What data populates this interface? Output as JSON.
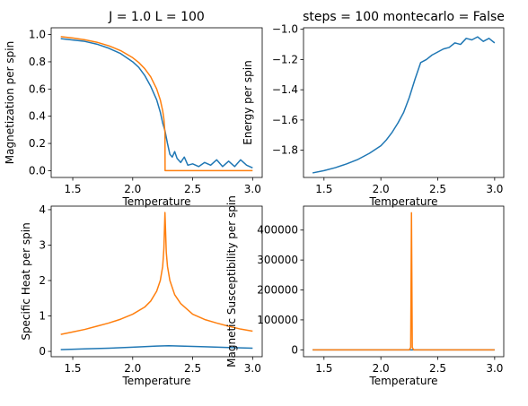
{
  "colors": {
    "blue": "#1f77b4",
    "orange": "#ff7f0e",
    "axis": "#000000",
    "background": "#ffffff"
  },
  "chart_data": [
    {
      "type": "line",
      "title": "J = 1.0 L = 100",
      "xlabel": "Temperature",
      "ylabel": "Magnetization per spin",
      "xlim": [
        1.32,
        3.08
      ],
      "ylim": [
        -0.05,
        1.05
      ],
      "xticks": [
        1.5,
        2.0,
        2.5,
        3.0
      ],
      "xtick_labels": [
        "1.5",
        "2.0",
        "2.5",
        "3.0"
      ],
      "yticks": [
        0.0,
        0.2,
        0.4,
        0.6,
        0.8,
        1.0
      ],
      "ytick_labels": [
        "0.0",
        "0.2",
        "0.4",
        "0.6",
        "0.8",
        "1.0"
      ],
      "grid": false,
      "series": [
        {
          "color": "#1f77b4",
          "x": [
            1.4,
            1.5,
            1.6,
            1.7,
            1.8,
            1.9,
            2.0,
            2.05,
            2.1,
            2.15,
            2.2,
            2.23,
            2.25,
            2.27,
            2.29,
            2.31,
            2.33,
            2.35,
            2.37,
            2.4,
            2.43,
            2.46,
            2.5,
            2.55,
            2.6,
            2.65,
            2.7,
            2.75,
            2.8,
            2.85,
            2.9,
            2.95,
            3.0
          ],
          "y": [
            0.97,
            0.96,
            0.95,
            0.93,
            0.9,
            0.86,
            0.8,
            0.76,
            0.7,
            0.62,
            0.52,
            0.43,
            0.35,
            0.29,
            0.2,
            0.12,
            0.1,
            0.14,
            0.09,
            0.06,
            0.1,
            0.04,
            0.05,
            0.03,
            0.06,
            0.04,
            0.08,
            0.03,
            0.07,
            0.03,
            0.08,
            0.04,
            0.02
          ]
        },
        {
          "color": "#ff7f0e",
          "x": [
            1.4,
            1.5,
            1.6,
            1.7,
            1.8,
            1.9,
            2.0,
            2.05,
            2.1,
            2.15,
            2.2,
            2.23,
            2.25,
            2.26,
            2.269,
            2.27,
            2.5,
            3.0
          ],
          "y": [
            0.985,
            0.975,
            0.962,
            0.944,
            0.918,
            0.882,
            0.83,
            0.795,
            0.75,
            0.69,
            0.6,
            0.52,
            0.44,
            0.38,
            0.28,
            0.0,
            0.0,
            0.0
          ]
        }
      ]
    },
    {
      "type": "line",
      "title": "steps = 100 montecarlo = False",
      "xlabel": "Temperature",
      "ylabel": "Energy per spin",
      "xlim": [
        1.32,
        3.08
      ],
      "ylim": [
        -1.98,
        -0.99
      ],
      "xticks": [
        1.5,
        2.0,
        2.5,
        3.0
      ],
      "xtick_labels": [
        "1.5",
        "2.0",
        "2.5",
        "3.0"
      ],
      "yticks": [
        -1.8,
        -1.6,
        -1.4,
        -1.2,
        -1.0
      ],
      "ytick_labels": [
        "−1.8",
        "−1.6",
        "−1.4",
        "−1.2",
        "−1.0"
      ],
      "grid": false,
      "series": [
        {
          "color": "#1f77b4",
          "x": [
            1.4,
            1.5,
            1.6,
            1.7,
            1.8,
            1.9,
            2.0,
            2.05,
            2.1,
            2.15,
            2.2,
            2.25,
            2.3,
            2.35,
            2.4,
            2.45,
            2.5,
            2.55,
            2.6,
            2.65,
            2.7,
            2.75,
            2.8,
            2.85,
            2.9,
            2.95,
            3.0
          ],
          "y": [
            -1.95,
            -1.935,
            -1.915,
            -1.89,
            -1.86,
            -1.82,
            -1.77,
            -1.73,
            -1.68,
            -1.62,
            -1.55,
            -1.45,
            -1.33,
            -1.22,
            -1.2,
            -1.17,
            -1.15,
            -1.13,
            -1.12,
            -1.09,
            -1.1,
            -1.06,
            -1.07,
            -1.05,
            -1.08,
            -1.06,
            -1.09
          ]
        }
      ]
    },
    {
      "type": "line",
      "title": "",
      "xlabel": "Temperature",
      "ylabel": "Specific Heat per spin",
      "xlim": [
        1.32,
        3.08
      ],
      "ylim": [
        -0.15,
        4.1
      ],
      "xticks": [
        1.5,
        2.0,
        2.5,
        3.0
      ],
      "xtick_labels": [
        "1.5",
        "2.0",
        "2.5",
        "3.0"
      ],
      "yticks": [
        0,
        1,
        2,
        3,
        4
      ],
      "ytick_labels": [
        "0",
        "1",
        "2",
        "3",
        "4"
      ],
      "grid": false,
      "series": [
        {
          "color": "#1f77b4",
          "x": [
            1.4,
            1.6,
            1.8,
            2.0,
            2.2,
            2.3,
            2.4,
            2.6,
            2.8,
            3.0
          ],
          "y": [
            0.05,
            0.07,
            0.09,
            0.12,
            0.15,
            0.16,
            0.15,
            0.13,
            0.11,
            0.09
          ]
        },
        {
          "color": "#ff7f0e",
          "x": [
            1.4,
            1.5,
            1.6,
            1.7,
            1.8,
            1.9,
            2.0,
            2.1,
            2.15,
            2.2,
            2.23,
            2.25,
            2.26,
            2.269,
            2.28,
            2.29,
            2.31,
            2.35,
            2.4,
            2.5,
            2.6,
            2.7,
            2.8,
            2.9,
            3.0
          ],
          "y": [
            0.48,
            0.55,
            0.62,
            0.71,
            0.8,
            0.91,
            1.05,
            1.25,
            1.42,
            1.7,
            2.0,
            2.4,
            2.9,
            3.92,
            2.8,
            2.4,
            2.0,
            1.6,
            1.35,
            1.05,
            0.9,
            0.8,
            0.71,
            0.63,
            0.57
          ]
        }
      ]
    },
    {
      "type": "line",
      "title": "",
      "xlabel": "Temperature",
      "ylabel": "Magnetic Susceptibility per spin",
      "xlim": [
        1.32,
        3.08
      ],
      "ylim": [
        -23000,
        480000
      ],
      "xticks": [
        1.5,
        2.0,
        2.5,
        3.0
      ],
      "xtick_labels": [
        "1.5",
        "2.0",
        "2.5",
        "3.0"
      ],
      "yticks": [
        0,
        100000,
        200000,
        300000,
        400000
      ],
      "ytick_labels": [
        "0",
        "100000",
        "200000",
        "300000",
        "400000"
      ],
      "grid": false,
      "series": [
        {
          "color": "#1f77b4",
          "x": [
            1.4,
            2.0,
            2.27,
            2.5,
            3.0
          ],
          "y": [
            0,
            0,
            0,
            0,
            0
          ]
        },
        {
          "color": "#ff7f0e",
          "x": [
            1.4,
            2.0,
            2.25,
            2.262,
            2.269,
            2.276,
            2.288,
            2.5,
            3.0
          ],
          "y": [
            0,
            0,
            0,
            8000,
            458000,
            8000,
            0,
            0,
            0
          ]
        }
      ]
    }
  ]
}
